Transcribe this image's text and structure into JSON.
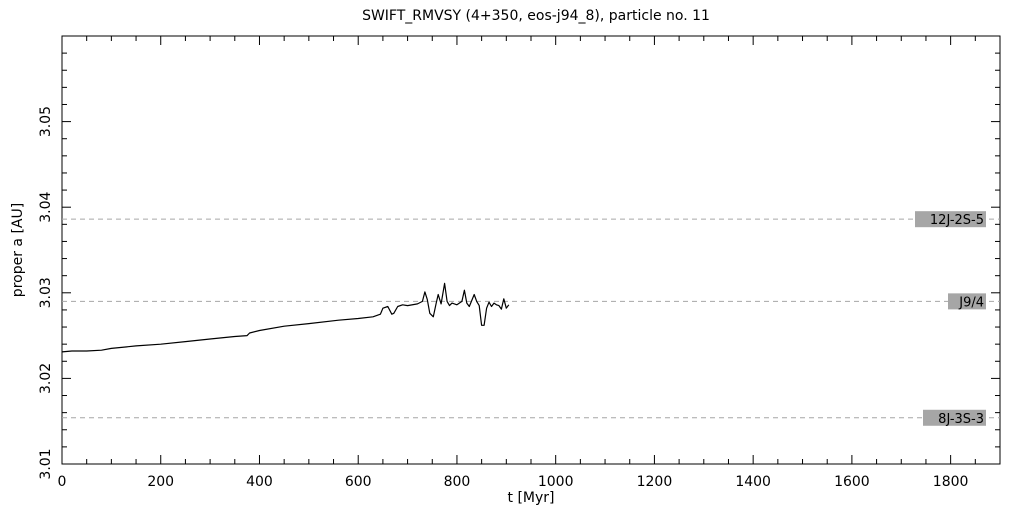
{
  "chart_data": {
    "type": "line",
    "title": "SWIFT_RMVSY (4+350, eos-j94_8), particle no. 11",
    "xlabel": "t [Myr]",
    "ylabel": "proper a [AU]",
    "xlim": [
      0,
      1900
    ],
    "ylim": [
      3.01,
      3.06
    ],
    "xticks": [
      0,
      200,
      400,
      600,
      800,
      1000,
      1200,
      1400,
      1600,
      1800
    ],
    "yticks": [
      3.01,
      3.02,
      3.03,
      3.04,
      3.05
    ],
    "xtick_labels": [
      "0",
      "200",
      "400",
      "600",
      "800",
      "1000",
      "1200",
      "1400",
      "1600",
      "1800"
    ],
    "ytick_labels": [
      "3.01",
      "3.02",
      "3.03",
      "3.04",
      "3.05"
    ],
    "grid": false,
    "resonance_color": "#a6a6a6",
    "resonances": [
      {
        "label": "12J-2S-5",
        "a": 3.0386
      },
      {
        "label": "J9/4",
        "a": 3.029
      },
      {
        "label": "8J-3S-3",
        "a": 3.0154
      }
    ],
    "series": [
      {
        "x": [
          0,
          20,
          50,
          80,
          100,
          150,
          200,
          250,
          300,
          350,
          375,
          380,
          400,
          450,
          500,
          560,
          600,
          630,
          645,
          650,
          660,
          668,
          672,
          680,
          690,
          700,
          720,
          730,
          735,
          740,
          745,
          752,
          758,
          762,
          768,
          775,
          780,
          785,
          790,
          800,
          810,
          815,
          820,
          825,
          835,
          840,
          845,
          850,
          855,
          860,
          865,
          870,
          875,
          880,
          885,
          890,
          895,
          900,
          905
        ],
        "y": [
          3.0231,
          3.0232,
          3.0232,
          3.0233,
          3.0235,
          3.0238,
          3.024,
          3.0243,
          3.0246,
          3.0249,
          3.025,
          3.0253,
          3.0256,
          3.0261,
          3.0264,
          3.0268,
          3.027,
          3.0272,
          3.0275,
          3.0282,
          3.0284,
          3.0275,
          3.0276,
          3.0284,
          3.0286,
          3.0285,
          3.0287,
          3.029,
          3.0301,
          3.0292,
          3.0276,
          3.0272,
          3.0288,
          3.0298,
          3.0287,
          3.0311,
          3.029,
          3.0285,
          3.0288,
          3.0286,
          3.029,
          3.0303,
          3.0288,
          3.0284,
          3.0298,
          3.029,
          3.0285,
          3.0262,
          3.0262,
          3.0282,
          3.0289,
          3.0284,
          3.0288,
          3.0286,
          3.0285,
          3.0281,
          3.0293,
          3.0282,
          3.0286
        ]
      }
    ]
  }
}
